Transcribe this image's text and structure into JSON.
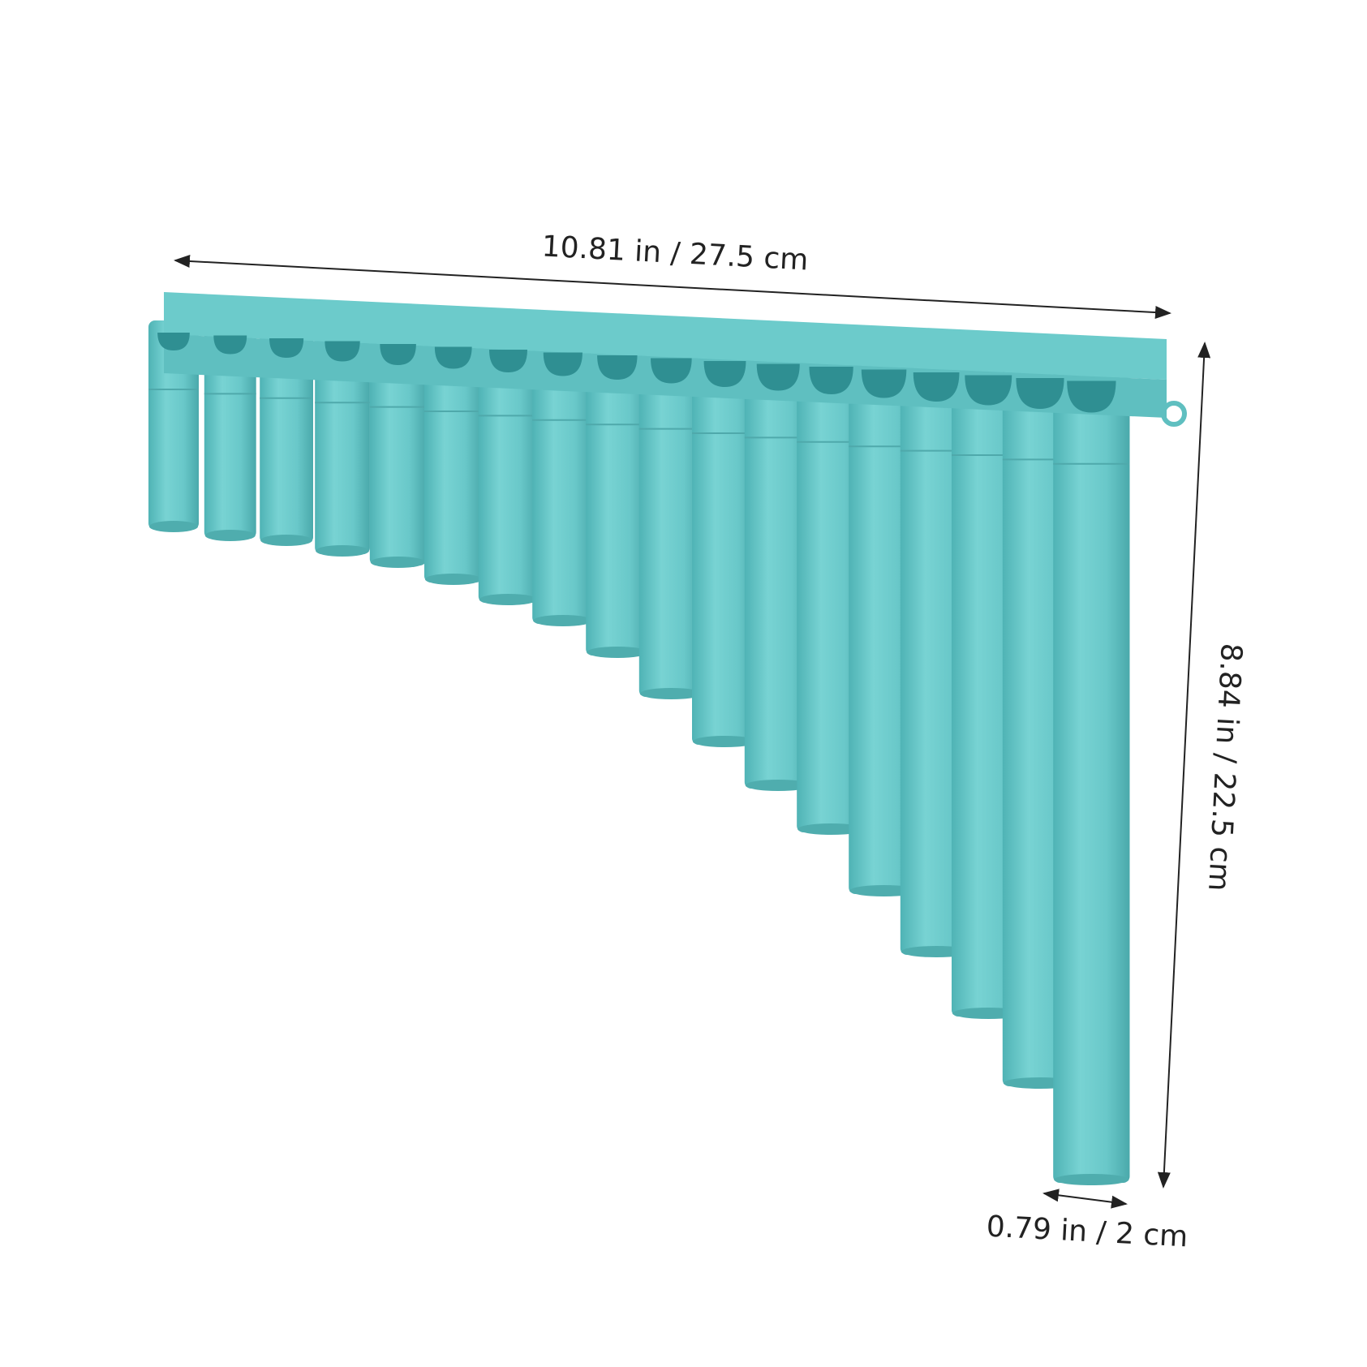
{
  "labels": {
    "length": "10.81 in / 27.5 cm",
    "height": "8.84 in / 22.5 cm",
    "diameter": "0.79 in / 2 cm"
  }
}
